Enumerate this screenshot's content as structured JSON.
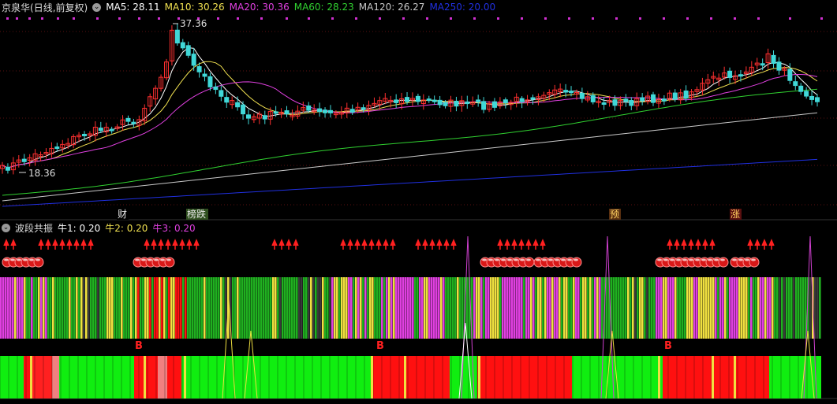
{
  "stock": {
    "name": "京泉华",
    "mode": "(日线,前复权)",
    "ma": [
      {
        "label": "MA5: 28.11",
        "color": "#ffffff"
      },
      {
        "label": "MA10: 30.26",
        "color": "#f0e050"
      },
      {
        "label": "MA20: 30.36",
        "color": "#e040e0"
      },
      {
        "label": "MA60: 28.23",
        "color": "#30d030"
      },
      {
        "label": "MA120: 26.27",
        "color": "#c8c8c8"
      },
      {
        "label": "MA250: 20.00",
        "color": "#2030e0"
      }
    ],
    "high_label": "37.36",
    "low_label": "18.36"
  },
  "events": [
    {
      "text": "财",
      "color": "#e8e8e8",
      "bg": "#000000"
    },
    {
      "text": "榜跌",
      "color": "#e8e8e8",
      "bg": "#305020"
    },
    {
      "text": "预",
      "color": "#ffd060",
      "bg": "#5a3010"
    },
    {
      "text": "涨",
      "color": "#ffd060",
      "bg": "#5a1010"
    }
  ],
  "indicator": {
    "name": "波段共振",
    "params": [
      {
        "label": "牛1: 0.20",
        "color": "#ffffff"
      },
      {
        "label": "牛2: 0.20",
        "color": "#f0e050"
      },
      {
        "label": "牛3: 0.20",
        "color": "#e040e0"
      }
    ],
    "buy_marker": "B"
  },
  "colors": {
    "up": "#ff3030",
    "down": "#40d8d8",
    "bar_magenta": "#e040e0",
    "bar_yellow": "#f0e040",
    "bar_green": "#20b020",
    "bar_red": "#ff1010",
    "bar_bright_green": "#10ee10"
  }
}
